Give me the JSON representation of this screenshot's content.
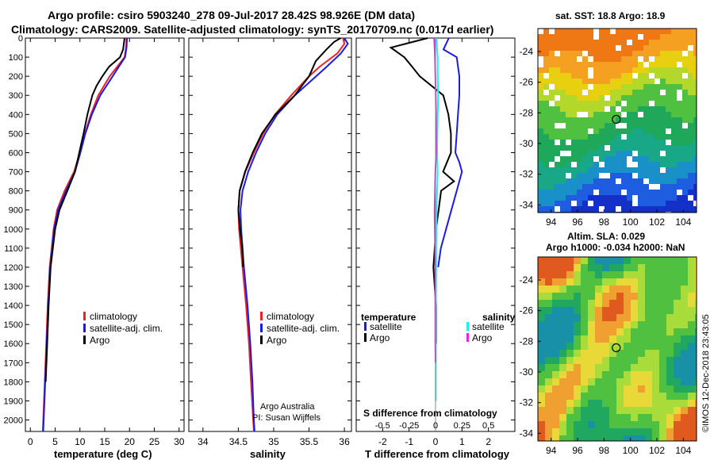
{
  "header": {
    "line1": "Argo profile: csiro 5903240_278 09-Jul-2017 28.42S 98.926E (DM data)",
    "line2": "Climatology: CARS2009. Satellite-adjusted climatology: synTS_20170709.nc (0.017d earlier)"
  },
  "credits": {
    "line1": "Argo Australia",
    "line2": "PI: Susan Wijffels",
    "stamp": "©IMOS 12-Dec-2018 23:43:05"
  },
  "colors": {
    "climatology": "#ee2222",
    "satellite": "#1a1aee",
    "argo": "#000000",
    "argo_salinity_diff": "#ee22ee",
    "satellite_salinity_diff": "#22eeee"
  },
  "chart_data": [
    {
      "type": "line",
      "id": "temperature",
      "xlabel": "temperature (deg C)",
      "ylabel": "",
      "xlim": [
        -1,
        31
      ],
      "ylim": [
        2060,
        0
      ],
      "xticks": [
        0,
        5,
        10,
        15,
        20,
        25,
        30
      ],
      "yticks": [
        0,
        100,
        200,
        300,
        400,
        500,
        600,
        700,
        800,
        900,
        1000,
        1100,
        1200,
        1300,
        1400,
        1500,
        1600,
        1700,
        1800,
        1900,
        2000
      ],
      "legend": [
        "climatology",
        "satellite-adj. clim.",
        "Argo"
      ],
      "series": [
        {
          "name": "climatology",
          "color": "#ee2222",
          "depth": [
            0,
            50,
            100,
            200,
            300,
            400,
            500,
            600,
            700,
            800,
            900,
            1000,
            1200,
            1400,
            1600,
            1800,
            2000,
            2060
          ],
          "values": [
            19.4,
            19.3,
            19.0,
            16.0,
            13.7,
            12.2,
            11.0,
            10.0,
            8.8,
            6.9,
            5.4,
            4.7,
            3.9,
            3.5,
            3.2,
            2.9,
            2.6,
            2.5
          ]
        },
        {
          "name": "satellite-adj. clim.",
          "color": "#1a1aee",
          "depth": [
            0,
            50,
            100,
            200,
            300,
            400,
            500,
            600,
            700,
            800,
            900,
            1000,
            1200,
            1400,
            1600,
            1800,
            2000,
            2060
          ],
          "values": [
            19.5,
            19.4,
            19.1,
            16.6,
            14.1,
            12.4,
            11.1,
            10.1,
            9.0,
            7.2,
            5.6,
            4.8,
            4.0,
            3.6,
            3.3,
            3.0,
            2.7,
            2.6
          ]
        },
        {
          "name": "Argo",
          "color": "#000000",
          "depth": [
            0,
            60,
            100,
            150,
            200,
            250,
            300,
            400,
            500,
            600,
            700,
            800,
            900,
            1000,
            1200,
            1400,
            1600,
            1800
          ],
          "values": [
            19.0,
            18.8,
            18.0,
            15.8,
            14.5,
            13.4,
            12.6,
            11.6,
            10.8,
            9.9,
            9.0,
            7.4,
            5.8,
            4.9,
            4.0,
            3.6,
            3.3,
            3.0
          ]
        }
      ]
    },
    {
      "type": "line",
      "id": "salinity",
      "xlabel": "salinity",
      "xlim": [
        33.8,
        36.1
      ],
      "ylim": [
        2060,
        0
      ],
      "xticks": [
        34,
        34.5,
        35,
        35.5,
        36
      ],
      "legend": [
        "climatology",
        "satellite-adj. clim.",
        "Argo"
      ],
      "series": [
        {
          "name": "climatology",
          "color": "#ee2222",
          "depth": [
            0,
            30,
            80,
            150,
            200,
            300,
            400,
            500,
            600,
            700,
            800,
            900,
            1000,
            1200,
            1400,
            1600,
            1800,
            2000,
            2060
          ],
          "values": [
            35.98,
            36.0,
            35.9,
            35.65,
            35.5,
            35.25,
            35.02,
            34.85,
            34.72,
            34.6,
            34.52,
            34.5,
            34.51,
            34.56,
            34.61,
            34.65,
            34.68,
            34.71,
            34.72
          ]
        },
        {
          "name": "satellite-adj. clim.",
          "color": "#1a1aee",
          "depth": [
            0,
            30,
            80,
            150,
            200,
            300,
            400,
            500,
            600,
            700,
            800,
            900,
            1000,
            1200,
            1400,
            1600,
            1800,
            2000,
            2060
          ],
          "values": [
            36.0,
            36.05,
            35.95,
            35.75,
            35.6,
            35.3,
            35.05,
            34.88,
            34.75,
            34.64,
            34.56,
            34.53,
            34.54,
            34.58,
            34.63,
            34.67,
            34.7,
            34.72,
            34.73
          ]
        },
        {
          "name": "Argo",
          "color": "#000000",
          "depth": [
            0,
            20,
            60,
            120,
            200,
            300,
            400,
            500,
            600,
            700,
            800,
            900,
            1000,
            1100,
            1200
          ],
          "values": [
            35.95,
            35.85,
            35.75,
            35.6,
            35.5,
            35.3,
            35.03,
            34.84,
            34.71,
            34.6,
            34.52,
            34.5,
            34.52,
            34.55,
            34.56
          ]
        }
      ]
    },
    {
      "type": "line",
      "id": "difference",
      "xlabel": "T difference from climatology",
      "xlabel_top": "S difference from climatology",
      "xlim": [
        -3,
        3
      ],
      "xticks": [
        -2,
        -1,
        0,
        1,
        2
      ],
      "xticks_top": [
        "-0.5",
        "-0.25",
        "0",
        "0.25",
        "0.5"
      ],
      "legend_temperature_title": "temperature",
      "legend_salinity_title": "salinity",
      "legend": [
        {
          "group": "temperature",
          "label": "satellite",
          "color": "#1a1aee"
        },
        {
          "group": "temperature",
          "label": "Argo",
          "color": "#000000"
        },
        {
          "group": "salinity",
          "label": "satellite",
          "color": "#22eeee"
        },
        {
          "group": "salinity",
          "label": "Argo",
          "color": "#ee22ee"
        }
      ],
      "series": [
        {
          "name": "T satellite",
          "color": "#1a1aee",
          "depth": [
            0,
            60,
            100,
            200,
            300,
            400,
            500,
            600,
            650,
            700,
            800,
            900,
            1000,
            1100,
            1200
          ],
          "values": [
            0.5,
            0.3,
            0.8,
            0.9,
            0.9,
            0.85,
            0.8,
            0.75,
            0.9,
            1.0,
            0.8,
            0.6,
            0.4,
            0.2,
            0.1
          ]
        },
        {
          "name": "T Argo",
          "color": "#000000",
          "depth": [
            0,
            50,
            100,
            150,
            200,
            300,
            400,
            500,
            600,
            700,
            750,
            800,
            900,
            1000,
            1200,
            1400,
            1600
          ],
          "values": [
            -0.3,
            -1.7,
            -1.2,
            -0.9,
            -0.6,
            0.3,
            0.5,
            0.6,
            0.6,
            0.3,
            0.7,
            0.2,
            0.1,
            0.0,
            -0.1,
            0.0,
            0.0
          ]
        },
        {
          "name": "S satellite",
          "color": "#22eeee",
          "depth": [
            0,
            60,
            100,
            200,
            300,
            400,
            500,
            600,
            700,
            800,
            900,
            1000,
            1100,
            1200,
            1400,
            1600,
            1800,
            1900
          ],
          "values": [
            0.04,
            0.06,
            0.08,
            0.08,
            0.1,
            0.08,
            0.07,
            0.06,
            0.08,
            0.06,
            0.04,
            0.03,
            0.02,
            0.02,
            0.01,
            0.01,
            0.01,
            0.01
          ]
        },
        {
          "name": "S Argo",
          "color": "#ee22ee",
          "depth": [
            0,
            100,
            200,
            300,
            400,
            500,
            600,
            700,
            800,
            900,
            1000,
            1100,
            1200,
            1400,
            1600,
            1700
          ],
          "values": [
            -0.05,
            -0.03,
            -0.02,
            -0.01,
            0.0,
            0.01,
            0.02,
            0.0,
            -0.01,
            -0.02,
            -0.01,
            0.0,
            0.0,
            0.0,
            0.0,
            0.0
          ]
        }
      ]
    },
    {
      "type": "heatmap",
      "id": "sst_map",
      "title": "sat. SST: 18.8 Argo: 18.9",
      "xlim": [
        93,
        105
      ],
      "ylim": [
        -34.5,
        -22.5
      ],
      "xticks": [
        94,
        96,
        98,
        100,
        102,
        104
      ],
      "yticks": [
        -24,
        -26,
        -28,
        -30,
        -32,
        -34
      ],
      "argo_position": {
        "lon": 98.926,
        "lat": -28.42
      }
    },
    {
      "type": "heatmap",
      "id": "sla_map",
      "title": "Altim. SLA: 0.029",
      "subtitle": "Argo h1000: -0.034 h2000: NaN",
      "xlim": [
        93,
        105
      ],
      "ylim": [
        -34.5,
        -22.5
      ],
      "xticks": [
        94,
        96,
        98,
        100,
        102,
        104
      ],
      "yticks": [
        -24,
        -26,
        -28,
        -30,
        -32,
        -34
      ],
      "argo_position": {
        "lon": 98.926,
        "lat": -28.42
      }
    }
  ]
}
